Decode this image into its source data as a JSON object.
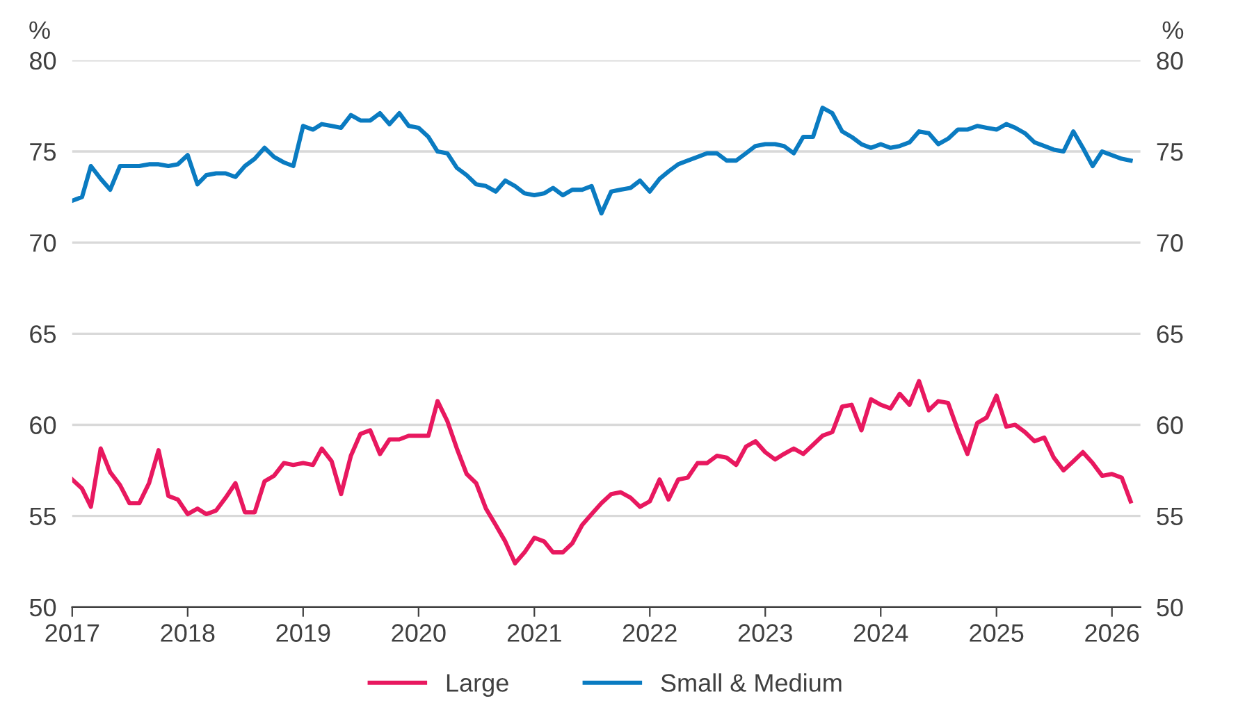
{
  "chart_data": {
    "type": "line",
    "ylabel": "%",
    "y2label": "%",
    "x": [
      "2017-01",
      "2017-02",
      "2017-03",
      "2017-04",
      "2017-05",
      "2017-06",
      "2017-07",
      "2017-08",
      "2017-09",
      "2017-10",
      "2017-11",
      "2017-12",
      "2018-01",
      "2018-02",
      "2018-03",
      "2018-04",
      "2018-05",
      "2018-06",
      "2018-07",
      "2018-08",
      "2018-09",
      "2018-10",
      "2018-11",
      "2018-12",
      "2019-01",
      "2019-02",
      "2019-03",
      "2019-04",
      "2019-05",
      "2019-06",
      "2019-07",
      "2019-08",
      "2019-09",
      "2019-10",
      "2019-11",
      "2019-12",
      "2020-01",
      "2020-02",
      "2020-03",
      "2020-04",
      "2020-05",
      "2020-06",
      "2020-07",
      "2020-08",
      "2020-09",
      "2020-10",
      "2020-11",
      "2020-12",
      "2021-01",
      "2021-02",
      "2021-03",
      "2021-04",
      "2021-05",
      "2021-06",
      "2021-07",
      "2021-08",
      "2021-09",
      "2021-10",
      "2021-11",
      "2021-12",
      "2022-01",
      "2022-02",
      "2022-03",
      "2022-04",
      "2022-05",
      "2022-06",
      "2022-07",
      "2022-08",
      "2022-09",
      "2022-10",
      "2022-11",
      "2022-12",
      "2023-01",
      "2023-02",
      "2023-03",
      "2023-04",
      "2023-05",
      "2023-06",
      "2023-07",
      "2023-08",
      "2023-09",
      "2023-10",
      "2023-11",
      "2023-12",
      "2024-01",
      "2024-02",
      "2024-03",
      "2024-04",
      "2024-05",
      "2024-06",
      "2024-07",
      "2024-08",
      "2024-09",
      "2024-10",
      "2024-11",
      "2024-12",
      "2025-01",
      "2025-02",
      "2025-03",
      "2025-04",
      "2025-05",
      "2025-06",
      "2025-07",
      "2025-08",
      "2025-09",
      "2025-10",
      "2025-11",
      "2025-12",
      "2026-01",
      "2026-02",
      "2026-03"
    ],
    "series": [
      {
        "name": "Large",
        "color": "#e8185f",
        "values": [
          57.0,
          56.5,
          55.5,
          58.7,
          57.4,
          56.7,
          55.7,
          55.7,
          56.8,
          58.6,
          56.1,
          55.9,
          55.1,
          55.4,
          55.1,
          55.3,
          56.0,
          56.8,
          55.2,
          55.2,
          56.9,
          57.2,
          57.9,
          57.8,
          57.9,
          57.8,
          58.7,
          58.0,
          56.2,
          58.3,
          59.5,
          59.7,
          58.4,
          59.2,
          59.2,
          59.4,
          59.4,
          59.4,
          61.3,
          60.2,
          58.7,
          57.3,
          56.8,
          55.4,
          54.5,
          53.6,
          52.4,
          53.0,
          53.8,
          53.6,
          53.0,
          53.0,
          53.5,
          54.5,
          55.1,
          55.7,
          56.2,
          56.3,
          56.0,
          55.5,
          55.8,
          57.0,
          55.9,
          57.0,
          57.1,
          57.9,
          57.9,
          58.3,
          58.2,
          57.8,
          58.8,
          59.1,
          58.5,
          58.1,
          58.4,
          58.7,
          58.4,
          58.9,
          59.4,
          59.6,
          61.0,
          61.1,
          59.7,
          61.4,
          61.1,
          60.9,
          61.7,
          61.1,
          62.4,
          60.8,
          61.3,
          61.2,
          59.7,
          58.4,
          60.1,
          60.4,
          61.6,
          59.9,
          60.0,
          59.6,
          59.1,
          59.3,
          58.2,
          57.5,
          58.0,
          58.5,
          57.9,
          57.2,
          57.3,
          57.1,
          55.8
        ]
      },
      {
        "name": "Small & Medium",
        "color": "#0a7bc1",
        "values": [
          72.3,
          72.5,
          74.2,
          73.5,
          72.9,
          74.2,
          74.2,
          74.2,
          74.3,
          74.3,
          74.2,
          74.3,
          74.8,
          73.2,
          73.7,
          73.8,
          73.8,
          73.6,
          74.2,
          74.6,
          75.2,
          74.7,
          74.4,
          74.2,
          76.4,
          76.2,
          76.5,
          76.4,
          76.3,
          77.0,
          76.7,
          76.7,
          77.1,
          76.5,
          77.1,
          76.4,
          76.3,
          75.8,
          75.0,
          74.9,
          74.1,
          73.7,
          73.2,
          73.1,
          72.8,
          73.4,
          73.1,
          72.7,
          72.6,
          72.7,
          73.0,
          72.6,
          72.9,
          72.9,
          73.1,
          71.6,
          72.8,
          72.9,
          73.0,
          73.4,
          72.8,
          73.5,
          73.9,
          74.3,
          74.5,
          74.7,
          74.9,
          74.9,
          74.5,
          74.5,
          74.9,
          75.3,
          75.4,
          75.4,
          75.3,
          74.9,
          75.8,
          75.8,
          77.4,
          77.1,
          76.1,
          75.8,
          75.4,
          75.2,
          75.4,
          75.2,
          75.3,
          75.5,
          76.1,
          76.0,
          75.4,
          75.7,
          76.2,
          76.2,
          76.4,
          76.3,
          76.2,
          76.5,
          76.3,
          76.0,
          75.5,
          75.3,
          75.1,
          75.0,
          76.1,
          75.2,
          74.2,
          75.0,
          74.8,
          74.6,
          74.5
        ]
      }
    ],
    "xlim": [
      "2017-01-01",
      "2026-04-01"
    ],
    "xticks": [
      {
        "value": "2017",
        "label": "2017"
      },
      {
        "value": "2018",
        "label": "2018"
      },
      {
        "value": "2019",
        "label": "2019"
      },
      {
        "value": "2020",
        "label": "2020"
      },
      {
        "value": "2021",
        "label": "2021"
      },
      {
        "value": "2022",
        "label": "2022"
      },
      {
        "value": "2023",
        "label": "2023"
      },
      {
        "value": "2024",
        "label": "2024"
      },
      {
        "value": "2025",
        "label": "2025"
      },
      {
        "value": "2026",
        "label": "2026"
      }
    ],
    "ylim": [
      50,
      80
    ],
    "yticks": [
      50,
      55,
      60,
      65,
      70,
      75,
      80
    ],
    "y2lim": [
      50,
      80
    ],
    "y2ticks": [
      50,
      55,
      60,
      65,
      70,
      75,
      80
    ],
    "grid": "y",
    "legend": "bottom",
    "marker": "none",
    "line_style": "solid"
  }
}
